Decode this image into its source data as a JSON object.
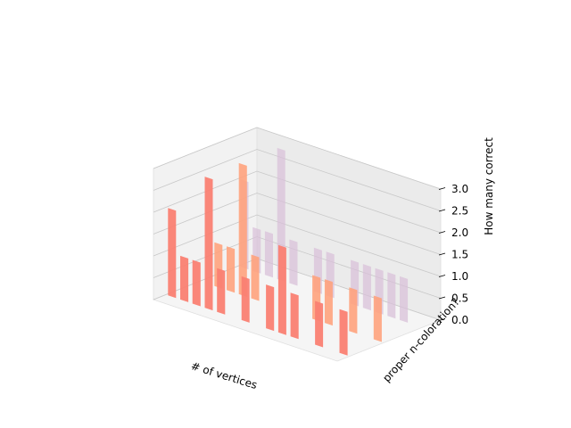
{
  "chart_data": {
    "type": "bar",
    "projection": "3d",
    "title": "",
    "xlabel": "# of vertices",
    "ylabel": "proper n-coloration?",
    "zlabel": "How many correct",
    "zlim": [
      0.0,
      3.0
    ],
    "z_ticks": [
      "0.0",
      "0.5",
      "1.0",
      "1.5",
      "2.0",
      "2.5",
      "3.0"
    ],
    "x_ticks": [],
    "y_ticks": [],
    "grid": true,
    "legend": "none",
    "series": [
      {
        "color": "#fa8072",
        "values": [
          2.0,
          1.0,
          1.0,
          3.0,
          1.0,
          0.0,
          1.0,
          0.0,
          1.0,
          2.0,
          1.0,
          0.0,
          1.0,
          0.0,
          1.0
        ]
      },
      {
        "color": "#ffa07a",
        "values": [
          0.0,
          1.0,
          1.0,
          3.0,
          1.0,
          0.0,
          0.0,
          0.0,
          0.0,
          1.0,
          1.0,
          0.0,
          1.0,
          0.0,
          1.0
        ]
      },
      {
        "color": "#d8bfd8",
        "values": [
          2.0,
          1.0,
          1.0,
          3.0,
          1.0,
          0.0,
          1.0,
          1.0,
          0.0,
          1.0,
          1.0,
          1.0,
          1.0,
          1.0,
          0.0
        ]
      }
    ]
  }
}
